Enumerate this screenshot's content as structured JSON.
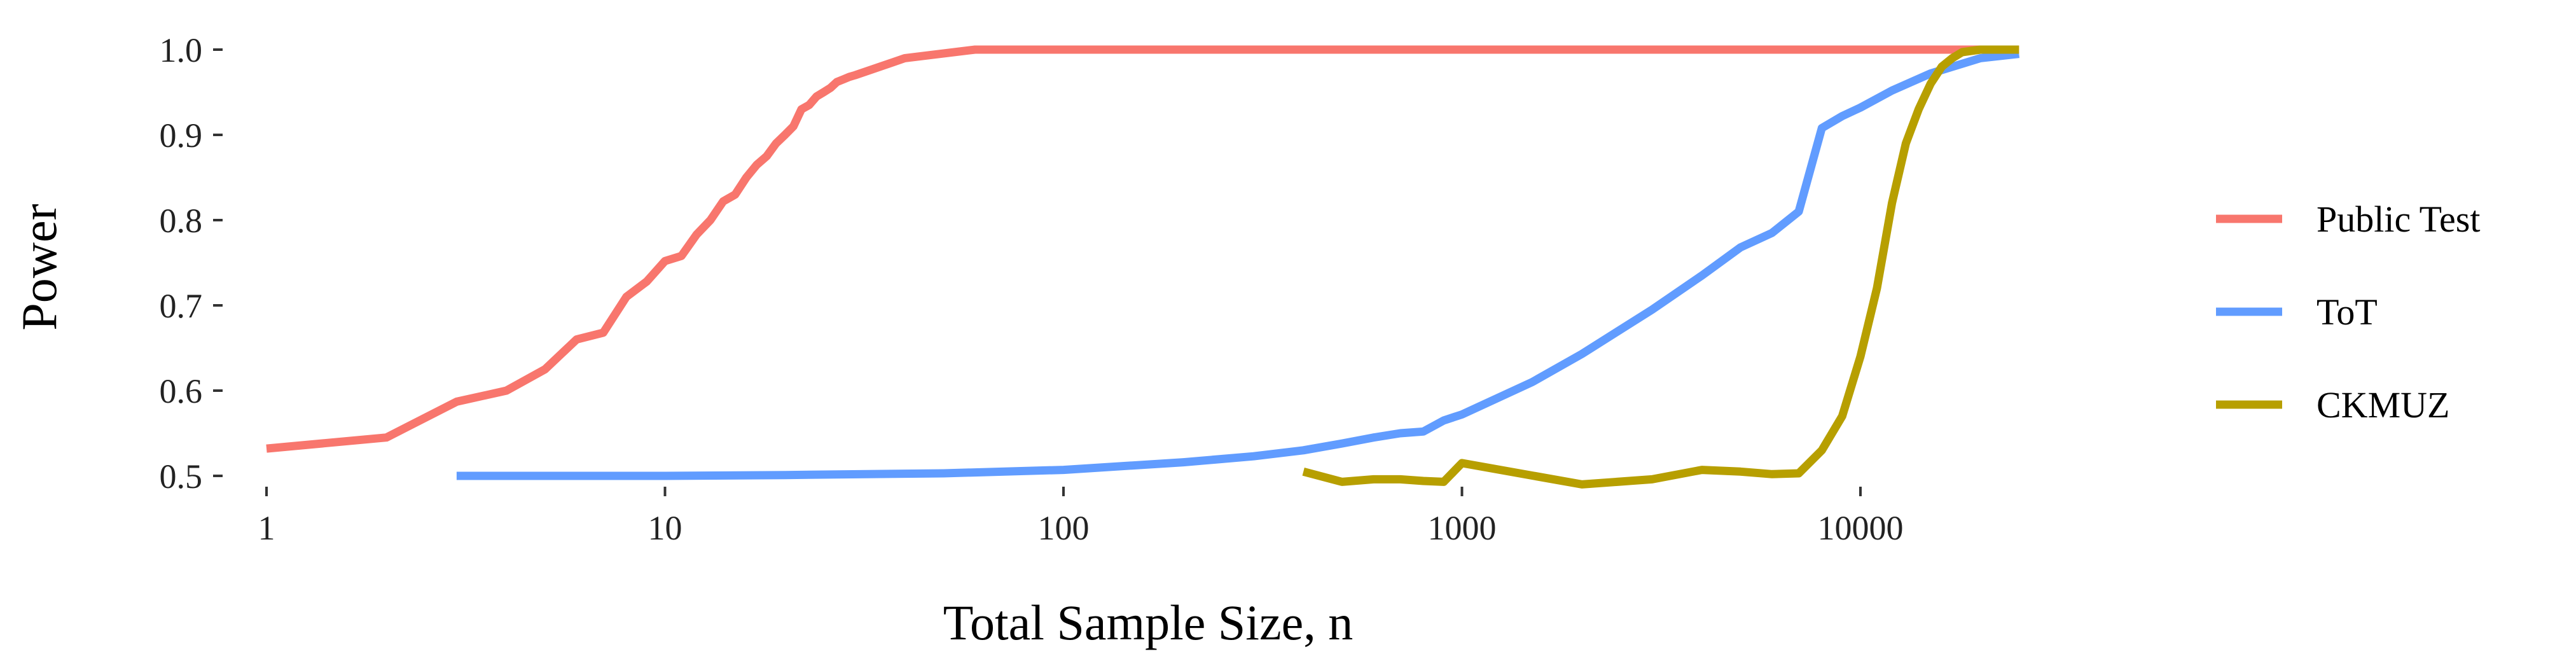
{
  "chart_data": {
    "type": "line",
    "xlabel": "Total Sample Size, n",
    "ylabel": "Power",
    "x_scale": "log10",
    "xlim": [
      1,
      25000
    ],
    "ylim": [
      0.47,
      1.02
    ],
    "x_ticks": [
      1,
      10,
      100,
      1000,
      10000
    ],
    "x_tick_labels": [
      "1",
      "10",
      "100",
      "1000",
      "10000"
    ],
    "y_ticks": [
      0.5,
      0.6,
      0.7,
      0.8,
      0.9,
      1.0
    ],
    "y_tick_labels": [
      "0.5",
      "0.6",
      "0.7",
      "0.8",
      "0.9",
      "1.0"
    ],
    "grid": false,
    "legend_position": "right",
    "series": [
      {
        "name": "Public Test",
        "color": "#F8766D",
        "x": [
          1,
          2,
          3,
          4,
          5,
          6,
          7,
          8,
          9,
          10,
          11,
          12,
          13,
          14,
          15,
          16,
          17,
          18,
          19,
          20,
          21,
          22,
          23,
          24,
          25,
          26,
          27,
          28,
          29,
          30,
          40,
          60,
          100,
          1000,
          10000,
          25000
        ],
        "y": [
          0.532,
          0.545,
          0.587,
          0.6,
          0.625,
          0.66,
          0.668,
          0.71,
          0.728,
          0.752,
          0.758,
          0.783,
          0.8,
          0.822,
          0.83,
          0.85,
          0.865,
          0.875,
          0.89,
          0.9,
          0.91,
          0.93,
          0.935,
          0.945,
          0.95,
          0.955,
          0.962,
          0.965,
          0.968,
          0.97,
          0.99,
          1.0,
          1.0,
          1.0,
          1.0,
          1.0
        ]
      },
      {
        "name": "ToT",
        "color": "#619CFF",
        "x": [
          3,
          5,
          10,
          20,
          50,
          100,
          200,
          300,
          400,
          500,
          600,
          700,
          800,
          900,
          1000,
          1500,
          2000,
          3000,
          4000,
          5000,
          6000,
          7000,
          8000,
          9000,
          10000,
          12000,
          15000,
          20000,
          25000
        ],
        "y": [
          0.5,
          0.5,
          0.5,
          0.501,
          0.503,
          0.507,
          0.516,
          0.523,
          0.53,
          0.538,
          0.545,
          0.55,
          0.552,
          0.565,
          0.572,
          0.61,
          0.643,
          0.695,
          0.735,
          0.768,
          0.785,
          0.81,
          0.908,
          0.922,
          0.932,
          0.952,
          0.972,
          0.99,
          0.995
        ]
      },
      {
        "name": "CKMUZ",
        "color": "#B79F00",
        "x": [
          400,
          500,
          600,
          700,
          800,
          900,
          1000,
          2000,
          3000,
          4000,
          5000,
          6000,
          7000,
          8000,
          9000,
          10000,
          11000,
          12000,
          13000,
          14000,
          15000,
          16000,
          17000,
          18000,
          20000,
          25000
        ],
        "y": [
          0.505,
          0.493,
          0.496,
          0.496,
          0.494,
          0.493,
          0.515,
          0.49,
          0.496,
          0.507,
          0.505,
          0.502,
          0.503,
          0.53,
          0.57,
          0.64,
          0.72,
          0.82,
          0.89,
          0.93,
          0.96,
          0.98,
          0.99,
          0.997,
          1.0,
          1.0
        ]
      }
    ]
  }
}
